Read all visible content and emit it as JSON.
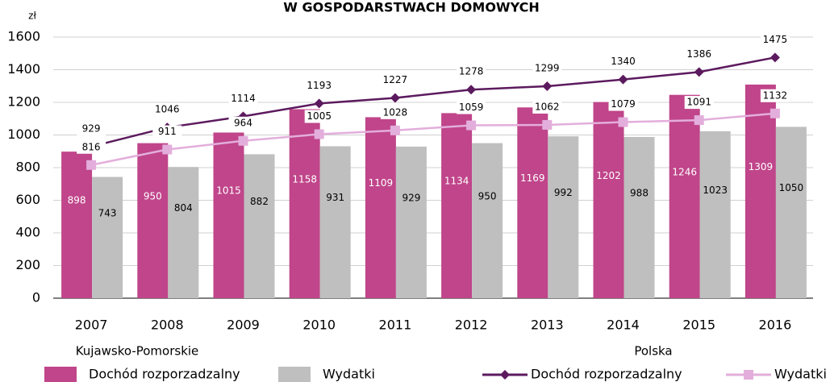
{
  "chart_data": {
    "type": "bar-line",
    "title": "W GOSPODARSTWACH DOMOWYCH",
    "y_label": "zł",
    "categories": [
      "2007",
      "2008",
      "2009",
      "2010",
      "2011",
      "2012",
      "2013",
      "2014",
      "2015",
      "2016"
    ],
    "legend_groups": [
      "Kujawsko-Pomorskie",
      "Polska"
    ],
    "series": [
      {
        "name": "Dochód rozporzadzalny",
        "type": "bar",
        "color": "#c0458a",
        "values": [
          898,
          950,
          1015,
          1158,
          1109,
          1134,
          1169,
          1202,
          1246,
          1309
        ]
      },
      {
        "name": "Wydatki",
        "type": "bar",
        "color": "#bfbfbf",
        "values": [
          743,
          804,
          882,
          931,
          929,
          950,
          992,
          988,
          1023,
          1050
        ]
      },
      {
        "name": "Dochód rozporzadzalny",
        "type": "line",
        "color": "#5c1a5e",
        "values": [
          929,
          1046,
          1114,
          1193,
          1227,
          1278,
          1299,
          1340,
          1386,
          1475
        ]
      },
      {
        "name": "Wydatki",
        "type": "line",
        "color": "#e3aedb",
        "values": [
          816,
          911,
          964,
          1005,
          1028,
          1059,
          1062,
          1079,
          1091,
          1132
        ]
      }
    ],
    "ylim": [
      0,
      1600
    ],
    "yticks": [
      0,
      200,
      400,
      600,
      800,
      1000,
      1200,
      1400,
      1600
    ],
    "grid": true
  }
}
